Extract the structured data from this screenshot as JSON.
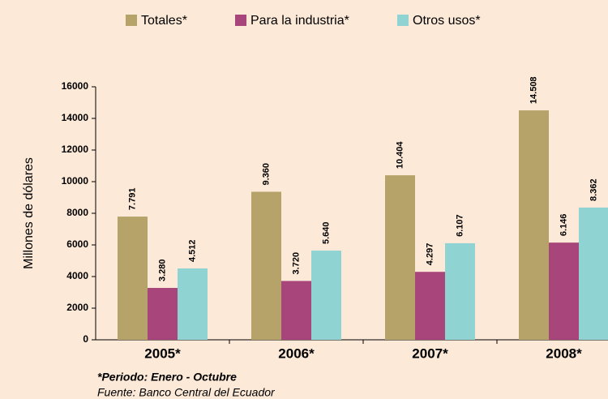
{
  "chart_data": {
    "type": "bar",
    "categories": [
      "2005*",
      "2006*",
      "2007*",
      "2008*"
    ],
    "series": [
      {
        "name": "Totales*",
        "color": "#b5a36a",
        "values": [
          7791,
          9360,
          10404,
          14508
        ],
        "value_labels": [
          "7.791",
          "9.360",
          "10.404",
          "14.508"
        ]
      },
      {
        "name": "Para la industria*",
        "color": "#a8457a",
        "values": [
          3280,
          3720,
          4297,
          6146
        ],
        "value_labels": [
          "3.280",
          "3.720",
          "4.297",
          "6.146"
        ]
      },
      {
        "name": "Otros usos*",
        "color": "#8fd3d3",
        "values": [
          4512,
          5640,
          6107,
          8362
        ],
        "value_labels": [
          "4.512",
          "5.640",
          "6.107",
          "8.362"
        ]
      }
    ],
    "y_label": "Millones de dólares",
    "ylim": [
      0,
      16000
    ],
    "yticks": [
      0,
      2000,
      4000,
      6000,
      8000,
      10000,
      12000,
      14000,
      16000
    ],
    "legend": "top",
    "notes": [
      "*Periodo: Enero - Octubre",
      "Fuente: Banco Central del Ecuador"
    ]
  }
}
